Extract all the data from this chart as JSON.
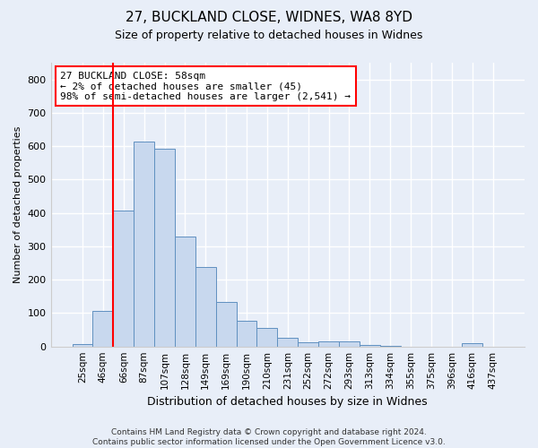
{
  "title1": "27, BUCKLAND CLOSE, WIDNES, WA8 8YD",
  "title2": "Size of property relative to detached houses in Widnes",
  "xlabel": "Distribution of detached houses by size in Widnes",
  "ylabel": "Number of detached properties",
  "categories": [
    "25sqm",
    "46sqm",
    "66sqm",
    "87sqm",
    "107sqm",
    "128sqm",
    "149sqm",
    "169sqm",
    "190sqm",
    "210sqm",
    "231sqm",
    "252sqm",
    "272sqm",
    "293sqm",
    "313sqm",
    "334sqm",
    "355sqm",
    "375sqm",
    "396sqm",
    "416sqm",
    "437sqm"
  ],
  "values": [
    7,
    107,
    407,
    615,
    592,
    328,
    237,
    133,
    78,
    56,
    26,
    13,
    16,
    15,
    4,
    3,
    0,
    0,
    0,
    9,
    0
  ],
  "bar_color": "#c8d8ee",
  "bar_edge_color": "#6090c0",
  "vline_x": 1.5,
  "vline_color": "red",
  "annotation_text": "27 BUCKLAND CLOSE: 58sqm\n← 2% of detached houses are smaller (45)\n98% of semi-detached houses are larger (2,541) →",
  "annotation_box_color": "white",
  "annotation_box_edge_color": "red",
  "ylim": [
    0,
    850
  ],
  "yticks": [
    0,
    100,
    200,
    300,
    400,
    500,
    600,
    700,
    800
  ],
  "footer": "Contains HM Land Registry data © Crown copyright and database right 2024.\nContains public sector information licensed under the Open Government Licence v3.0.",
  "background_color": "#e8eef8",
  "grid_color": "white",
  "title1_fontsize": 11,
  "title2_fontsize": 9,
  "xlabel_fontsize": 9,
  "ylabel_fontsize": 8,
  "tick_fontsize": 8,
  "xtick_fontsize": 7.5
}
